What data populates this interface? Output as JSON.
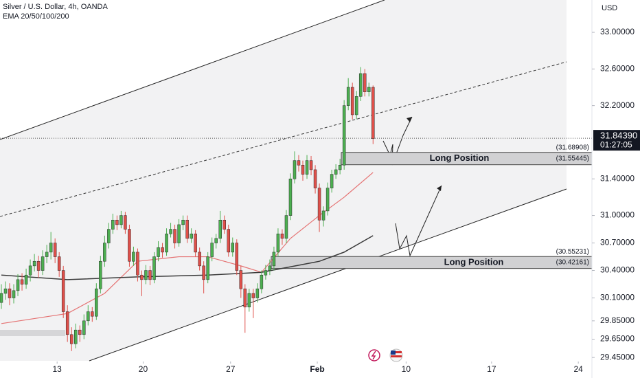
{
  "chart_data": {
    "type": "candlestick",
    "title": "Silver / U.S. Dollar, 4h, OANDA",
    "subtitle": "EMA 20/50/100/200",
    "y_axis_label": "USD",
    "up_color": "#4caf50",
    "down_color": "#e0504a",
    "xlim": [
      -0.33,
      143
    ],
    "xticks": [
      {
        "value": 13.5,
        "label": "13"
      },
      {
        "value": 34.33,
        "label": "20"
      },
      {
        "value": 55.5,
        "label": "27"
      },
      {
        "value": 76.5,
        "label": "Feb"
      },
      {
        "value": 98,
        "label": "10"
      },
      {
        "value": 118.7,
        "label": "17"
      },
      {
        "value": 139.7,
        "label": "24"
      }
    ],
    "ylim": [
      29.406,
      33.353
    ],
    "yticks": [
      {
        "value": 33,
        "label": "33.00000"
      },
      {
        "value": 32.6,
        "label": "32.60000"
      },
      {
        "value": 32.2,
        "label": "32.20000"
      },
      {
        "value": 31.4,
        "label": "31.40000"
      },
      {
        "value": 31,
        "label": "31.00000"
      },
      {
        "value": 30.7,
        "label": "30.70000"
      },
      {
        "value": 30.4,
        "label": "30.40000"
      },
      {
        "value": 30.1,
        "label": "30.10000"
      },
      {
        "value": 29.85,
        "label": "29.85000"
      },
      {
        "value": 29.65,
        "label": "29.65000"
      },
      {
        "value": 29.45,
        "label": "29.45000"
      }
    ],
    "last_price": {
      "value": 31.8439,
      "label": "31.84390"
    },
    "countdown": "01:27:05",
    "ohlc": [
      [
        30.05,
        30.25,
        29.98,
        30.15
      ],
      [
        30.15,
        30.28,
        30.08,
        30.2
      ],
      [
        30.2,
        30.26,
        30.02,
        30.1
      ],
      [
        30.1,
        30.25,
        30.04,
        30.18
      ],
      [
        30.18,
        30.36,
        30.12,
        30.3
      ],
      [
        30.3,
        30.37,
        30.18,
        30.25
      ],
      [
        30.25,
        30.42,
        30.2,
        30.35
      ],
      [
        30.35,
        30.52,
        30.28,
        30.45
      ],
      [
        30.45,
        30.58,
        30.39,
        30.5
      ],
      [
        30.5,
        30.56,
        30.32,
        30.4
      ],
      [
        30.4,
        30.62,
        30.35,
        30.55
      ],
      [
        30.55,
        30.68,
        30.48,
        30.6
      ],
      [
        30.6,
        30.82,
        30.52,
        30.7
      ],
      [
        30.7,
        30.75,
        30.48,
        30.55
      ],
      [
        30.55,
        30.6,
        30.33,
        30.4
      ],
      [
        30.4,
        30.45,
        29.88,
        29.95
      ],
      [
        29.95,
        30.02,
        29.62,
        29.7
      ],
      [
        29.7,
        29.78,
        29.52,
        29.6
      ],
      [
        29.6,
        29.82,
        29.55,
        29.75
      ],
      [
        29.75,
        29.8,
        29.62,
        29.7
      ],
      [
        29.7,
        29.92,
        29.65,
        29.85
      ],
      [
        29.85,
        30.02,
        29.8,
        29.95
      ],
      [
        29.95,
        30.0,
        29.84,
        29.9
      ],
      [
        29.9,
        30.26,
        29.86,
        30.2
      ],
      [
        30.2,
        30.56,
        30.15,
        30.5
      ],
      [
        30.5,
        30.78,
        30.44,
        30.7
      ],
      [
        30.7,
        30.92,
        30.64,
        30.85
      ],
      [
        30.85,
        31.02,
        30.8,
        30.95
      ],
      [
        30.95,
        31.0,
        30.84,
        30.9
      ],
      [
        30.9,
        31.05,
        30.86,
        31.0
      ],
      [
        31.0,
        31.04,
        30.8,
        30.85
      ],
      [
        30.85,
        30.9,
        30.44,
        30.5
      ],
      [
        30.5,
        30.66,
        30.45,
        30.6
      ],
      [
        30.6,
        30.64,
        30.28,
        30.35
      ],
      [
        30.35,
        30.4,
        30.12,
        30.3
      ],
      [
        30.3,
        30.46,
        30.25,
        30.4
      ],
      [
        30.4,
        30.45,
        30.24,
        30.3
      ],
      [
        30.3,
        30.6,
        30.26,
        30.55
      ],
      [
        30.55,
        30.72,
        30.5,
        30.65
      ],
      [
        30.65,
        30.7,
        30.54,
        30.6
      ],
      [
        30.6,
        30.86,
        30.56,
        30.8
      ],
      [
        30.8,
        30.92,
        30.76,
        30.85
      ],
      [
        30.85,
        30.9,
        30.64,
        30.7
      ],
      [
        30.7,
        30.96,
        30.66,
        30.9
      ],
      [
        30.9,
        31.0,
        30.84,
        30.95
      ],
      [
        30.95,
        31.0,
        30.7,
        30.75
      ],
      [
        30.75,
        30.86,
        30.7,
        30.8
      ],
      [
        30.8,
        30.84,
        30.55,
        30.6
      ],
      [
        30.6,
        30.65,
        30.4,
        30.45
      ],
      [
        30.45,
        30.5,
        30.15,
        30.3
      ],
      [
        30.3,
        30.6,
        30.26,
        30.55
      ],
      [
        30.55,
        30.76,
        30.5,
        30.7
      ],
      [
        30.7,
        30.8,
        30.64,
        30.75
      ],
      [
        30.75,
        31.05,
        30.7,
        30.95
      ],
      [
        30.95,
        31.0,
        30.8,
        30.85
      ],
      [
        30.85,
        30.9,
        30.55,
        30.6
      ],
      [
        30.6,
        30.76,
        30.55,
        30.7
      ],
      [
        30.7,
        30.74,
        30.35,
        30.4
      ],
      [
        30.4,
        30.45,
        30.1,
        30.2
      ],
      [
        30.2,
        30.25,
        29.72,
        30.0
      ],
      [
        30.0,
        30.2,
        29.95,
        30.15
      ],
      [
        30.15,
        30.2,
        29.88,
        30.1
      ],
      [
        30.1,
        30.26,
        30.05,
        30.2
      ],
      [
        30.2,
        30.4,
        30.15,
        30.35
      ],
      [
        30.35,
        30.46,
        30.3,
        30.4
      ],
      [
        30.4,
        30.52,
        30.35,
        30.45
      ],
      [
        30.45,
        30.66,
        30.4,
        30.6
      ],
      [
        30.6,
        30.86,
        30.55,
        30.8
      ],
      [
        30.8,
        30.85,
        30.68,
        30.75
      ],
      [
        30.75,
        31.06,
        30.7,
        31.0
      ],
      [
        31.0,
        31.46,
        30.95,
        31.4
      ],
      [
        31.4,
        31.7,
        31.35,
        31.6
      ],
      [
        31.6,
        31.66,
        31.48,
        31.55
      ],
      [
        31.55,
        31.6,
        31.38,
        31.45
      ],
      [
        31.45,
        31.66,
        31.4,
        31.6
      ],
      [
        31.6,
        31.65,
        31.44,
        31.5
      ],
      [
        31.5,
        31.55,
        31.24,
        31.3
      ],
      [
        31.3,
        31.35,
        30.82,
        30.95
      ],
      [
        30.95,
        31.1,
        30.88,
        31.05
      ],
      [
        31.05,
        31.36,
        31.0,
        31.3
      ],
      [
        31.3,
        31.5,
        31.25,
        31.45
      ],
      [
        31.45,
        31.56,
        31.4,
        31.5
      ],
      [
        31.5,
        31.62,
        31.45,
        31.55
      ],
      [
        31.55,
        32.26,
        31.5,
        32.2
      ],
      [
        32.2,
        32.5,
        32.15,
        32.4
      ],
      [
        32.4,
        32.45,
        32.05,
        32.1
      ],
      [
        32.1,
        32.36,
        32.05,
        32.3
      ],
      [
        32.3,
        32.62,
        32.25,
        32.55
      ],
      [
        32.55,
        32.6,
        32.3,
        32.35
      ],
      [
        32.35,
        32.45,
        32.3,
        32.4
      ],
      [
        32.4,
        32.42,
        31.78,
        31.84
      ]
    ],
    "ema": [
      {
        "color": "#e57373",
        "x": [
          0,
          16,
          25,
          33,
          43,
          50,
          58,
          63,
          70,
          77,
          83,
          90
        ],
        "values": [
          29.82,
          29.93,
          30.15,
          30.5,
          30.55,
          30.55,
          30.45,
          30.38,
          30.75,
          31.0,
          31.2,
          31.47
        ]
      },
      {
        "color": "#3a3a3a",
        "x": [
          0,
          16,
          33,
          50,
          63,
          77,
          83,
          90
        ],
        "values": [
          30.35,
          30.3,
          30.33,
          30.35,
          30.38,
          30.5,
          30.6,
          30.78
        ]
      }
    ],
    "positions": [
      {
        "label": "Long Position",
        "top": {
          "value": 31.68908,
          "label": "(31.68908)"
        },
        "bottom": {
          "value": 31.55445,
          "label": "(31.55445)"
        }
      },
      {
        "label": "Long Position",
        "top": {
          "value": 30.55231,
          "label": "(30.55231)"
        },
        "bottom": {
          "value": 30.42161,
          "label": "(30.42161)"
        }
      }
    ]
  }
}
